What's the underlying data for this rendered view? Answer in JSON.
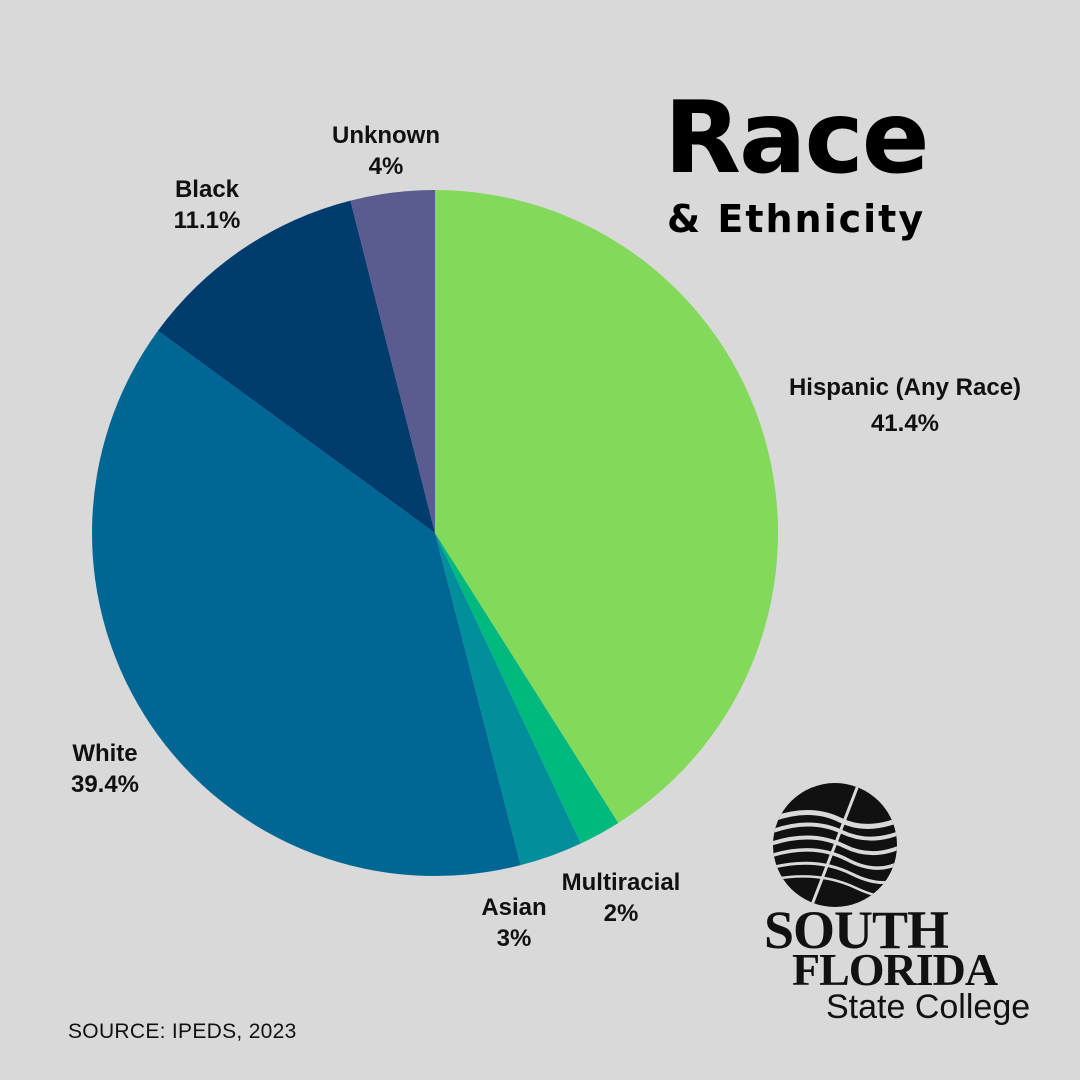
{
  "title": {
    "main": "Race",
    "sub": "& Ethnicity"
  },
  "source": "SOURCE: IPEDS, 2023",
  "logo": {
    "line1": "SOUTH",
    "line2": "FLORIDA",
    "line3": "State College",
    "icon": "sfsc-globe-icon"
  },
  "chart_data": {
    "type": "pie",
    "start_angle": "12 o'clock",
    "direction": "clockwise",
    "slices": [
      {
        "label": "Hispanic (Any Race)",
        "value": 41.4,
        "display": "41.4%",
        "color": "#82d95a"
      },
      {
        "label": "Multiracial",
        "value": 2,
        "display": "2%",
        "color": "#00b97f"
      },
      {
        "label": "Asian",
        "value": 3,
        "display": "3%",
        "color": "#008f9b"
      },
      {
        "label": "White",
        "value": 39.4,
        "display": "39.4%",
        "color": "#006795"
      },
      {
        "label": "Black",
        "value": 11.1,
        "display": "11.1%",
        "color": "#003d6e"
      },
      {
        "label": "Unknown",
        "value": 4,
        "display": "4%",
        "color": "#5a5b8f"
      }
    ]
  }
}
